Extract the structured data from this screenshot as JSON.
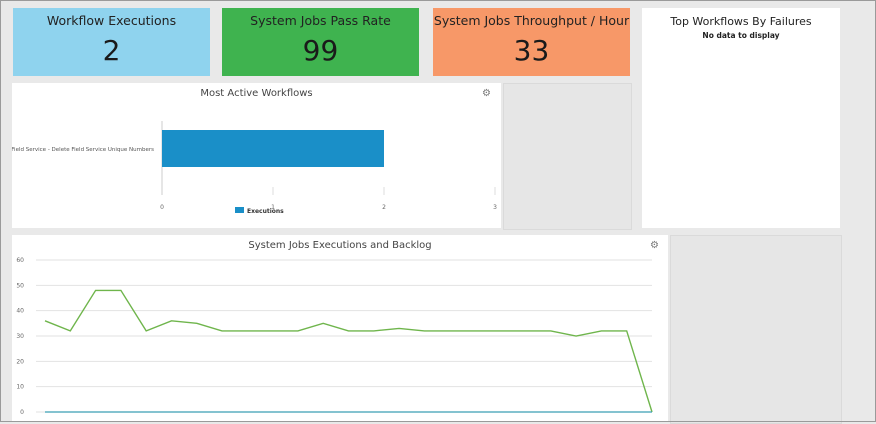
{
  "tiles": [
    {
      "title": "Workflow Executions",
      "value": "2",
      "color": "#8fd3ee"
    },
    {
      "title": "System Jobs Pass Rate",
      "value": "99",
      "color": "#3fb34f"
    },
    {
      "title": "System Jobs Throughput / Hour",
      "value": "33",
      "color": "#f79868"
    }
  ],
  "top_failures": {
    "title": "Top Workflows By Failures",
    "empty_text": "No data to display"
  },
  "chart_data": [
    {
      "type": "bar",
      "orientation": "horizontal",
      "title": "Most Active Workflows",
      "categories": [
        "Field Service - Delete Field Service Unique Numbers"
      ],
      "series": [
        {
          "name": "Executions",
          "values": [
            2
          ],
          "color": "#1a8fc8"
        }
      ],
      "xlim": [
        0,
        3
      ],
      "xticks": [
        "0",
        "1",
        "2",
        "3"
      ],
      "legend": "bottom-center"
    },
    {
      "type": "line",
      "title": "System Jobs Executions and Backlog",
      "ylim": [
        0,
        60
      ],
      "yticks": [
        "0",
        "10",
        "20",
        "30",
        "40",
        "50",
        "60"
      ],
      "grid": true,
      "series": [
        {
          "values": [
            36,
            32,
            48,
            48,
            32,
            36,
            35,
            32,
            32,
            32,
            32,
            35,
            32,
            32,
            33,
            32,
            32,
            32,
            32,
            32,
            32,
            30,
            32,
            32,
            0
          ],
          "color": "#6fb54c"
        },
        {
          "values": [
            0,
            0,
            0,
            0,
            0,
            0,
            0,
            0,
            0,
            0,
            0,
            0,
            0,
            0,
            0,
            0,
            0,
            0,
            0,
            0,
            0,
            0,
            0,
            0,
            0
          ],
          "color": "#3a9fb5"
        }
      ]
    }
  ]
}
